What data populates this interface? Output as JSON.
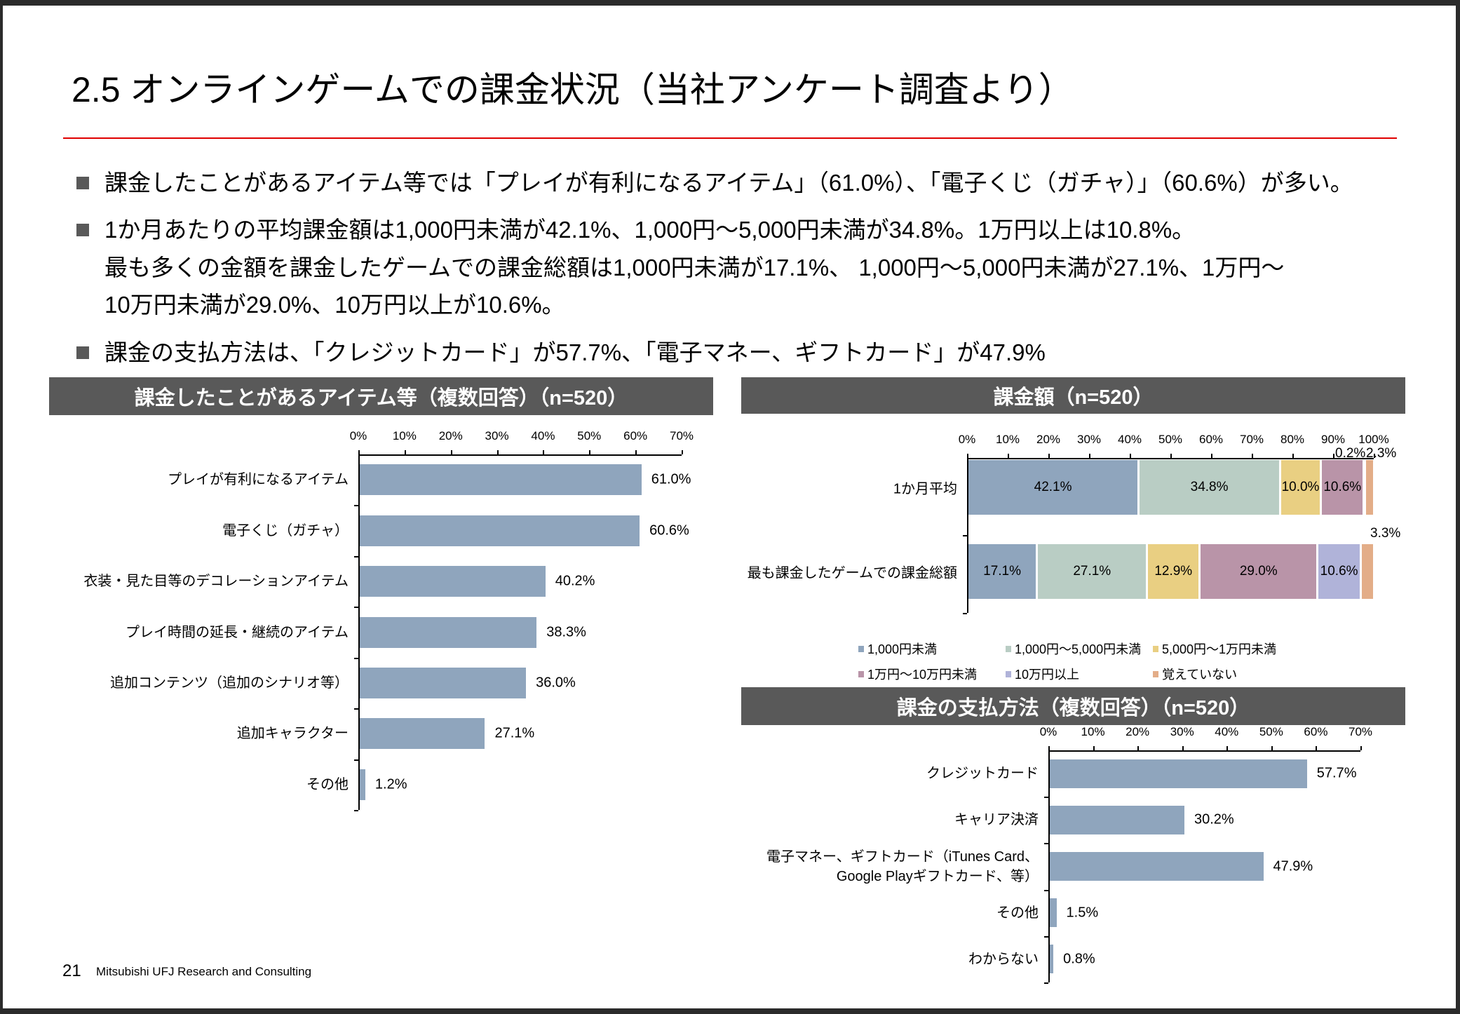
{
  "title": "2.5 オンラインゲームでの課金状況（当社アンケート調査より）",
  "bullets": [
    [
      "課金したことがあるアイテム等では「プレイが有利になるアイテム」（61.0%）、「電子くじ（ガチャ）」（60.6%）が多い。"
    ],
    [
      "1か月あたりの平均課金額は1,000円未満が42.1%、1,000円～5,000円未満が34.8%。1万円以上は10.8%。",
      "最も多くの金額を課金したゲームでの課金総額は1,000円未満が17.1%、 1,000円～5,000円未満が27.1%、1万円～",
      "10万円未満が29.0%、10万円以上が10.6%。"
    ],
    [
      "課金の支払方法は、「クレジットカード」が57.7%、「電子マネー、ギフトカード」が47.9%"
    ]
  ],
  "footer": {
    "page": "21",
    "org": "Mitsubishi UFJ Research and Consulting"
  },
  "colors": {
    "bar": "#8fa5bd",
    "header": "#595959",
    "rule": "#e00000"
  },
  "chart_data": [
    {
      "type": "bar",
      "orientation": "horizontal",
      "title": "課金したことがあるアイテム等（複数回答）（n=520）",
      "xlim": [
        0,
        70
      ],
      "ticks": [
        "0%",
        "10%",
        "20%",
        "30%",
        "40%",
        "50%",
        "60%",
        "70%"
      ],
      "categories": [
        "プレイが有利になるアイテム",
        "電子くじ（ガチャ）",
        "衣装・見た目等のデコレーションアイテム",
        "プレイ時間の延長・継続のアイテム",
        "追加コンテンツ（追加のシナリオ等）",
        "追加キャラクター",
        "その他"
      ],
      "values": [
        61.0,
        60.6,
        40.2,
        38.3,
        36.0,
        27.1,
        1.2
      ],
      "labels": [
        "61.0%",
        "60.6%",
        "40.2%",
        "38.3%",
        "36.0%",
        "27.1%",
        "1.2%"
      ]
    },
    {
      "type": "bar",
      "stacked": true,
      "orientation": "horizontal",
      "title": "課金額（n=520）",
      "xlim": [
        0,
        100
      ],
      "ticks": [
        "0%",
        "10%",
        "20%",
        "30%",
        "40%",
        "50%",
        "60%",
        "70%",
        "80%",
        "90%",
        "100%"
      ],
      "categories": [
        "1か月平均",
        "最も課金したゲームでの課金総額"
      ],
      "series": [
        {
          "name": "1,000円未満",
          "color": "#8fa5bd",
          "values": [
            42.1,
            17.1
          ],
          "labels": [
            "42.1%",
            "17.1%"
          ]
        },
        {
          "name": "1,000円～5,000円未満",
          "color": "#b9cdc4",
          "values": [
            34.8,
            27.1
          ],
          "labels": [
            "34.8%",
            "27.1%"
          ]
        },
        {
          "name": "5,000円～1万円未満",
          "color": "#e9cf82",
          "values": [
            10.0,
            12.9
          ],
          "labels": [
            "10.0%",
            "12.9%"
          ]
        },
        {
          "name": "1万円～10万円未満",
          "color": "#b994a8",
          "values": [
            10.6,
            29.0
          ],
          "labels": [
            "10.6%",
            "29.0%"
          ]
        },
        {
          "name": "10万円以上",
          "color": "#b0b3d9",
          "values": [
            0.2,
            10.6
          ],
          "labels": [
            "0.2%",
            "10.6%"
          ]
        },
        {
          "name": "覚えていない",
          "color": "#e3ad88",
          "values": [
            2.3,
            3.3
          ],
          "labels": [
            "2.3%",
            "3.3%"
          ]
        }
      ],
      "legend": "bottom"
    },
    {
      "type": "bar",
      "orientation": "horizontal",
      "title": "課金の支払方法（複数回答）（n=520）",
      "xlim": [
        0,
        70
      ],
      "ticks": [
        "0%",
        "10%",
        "20%",
        "30%",
        "40%",
        "50%",
        "60%",
        "70%"
      ],
      "categories": [
        "クレジットカード",
        "キャリア決済",
        "電子マネー、ギフトカード（iTunes Card、\nGoogle Playギフトカード、等）",
        "その他",
        "わからない"
      ],
      "values": [
        57.7,
        30.2,
        47.9,
        1.5,
        0.8
      ],
      "labels": [
        "57.7%",
        "30.2%",
        "47.9%",
        "1.5%",
        "0.8%"
      ]
    }
  ]
}
